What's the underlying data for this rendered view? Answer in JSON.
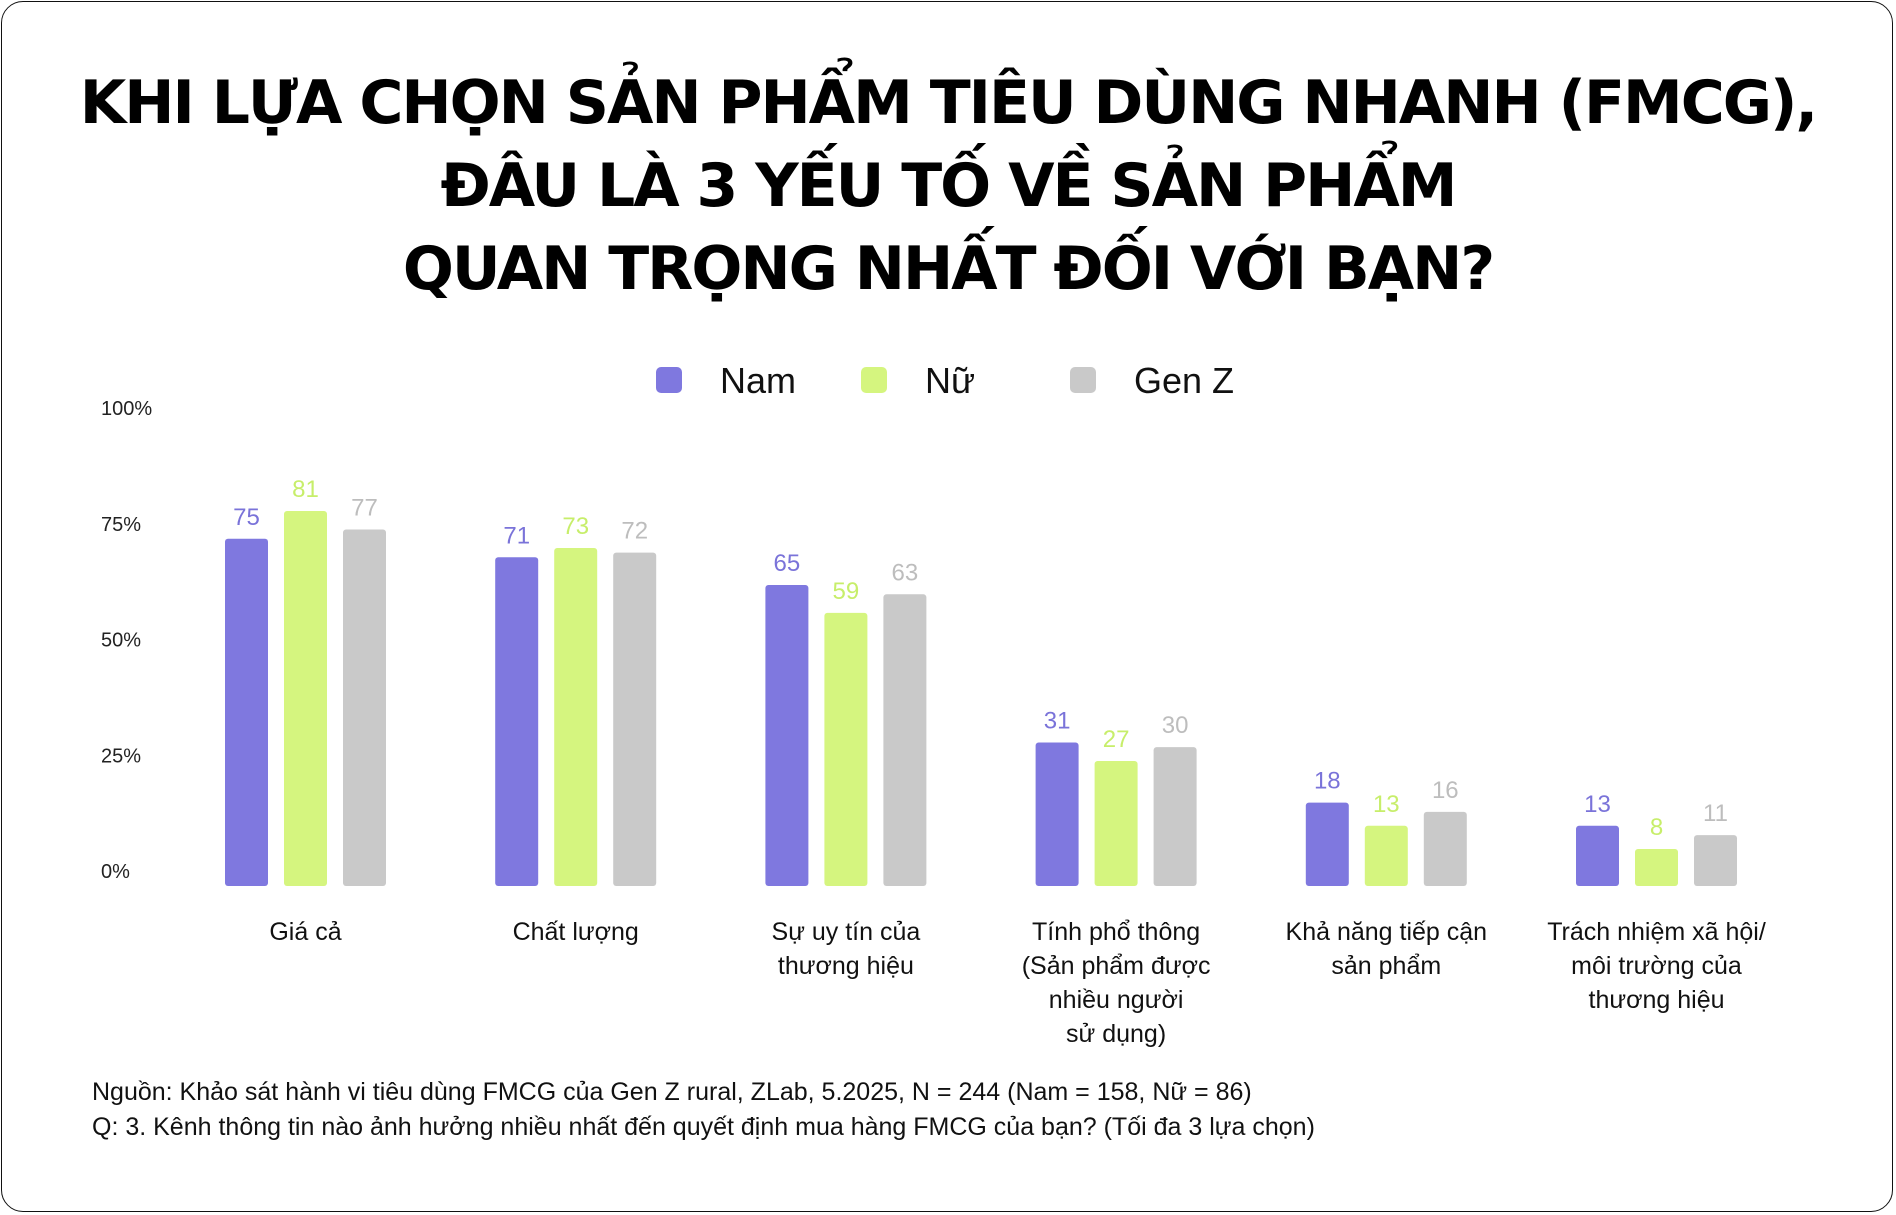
{
  "title": {
    "line1": "KHI LỰA CHỌN SẢN PHẨM TIÊU DÙNG NHANH (FMCG),",
    "line2": "ĐÂU LÀ 3 YẾU TỐ VỀ SẢN PHẨM",
    "line3": "QUAN TRỌNG NHẤT ĐỐI VỚI BẠN?"
  },
  "footer": {
    "source": "Nguồn: Khảo sát hành vi tiêu dùng FMCG của Gen Z rural, ZLab, 5.2025, N = 244 (Nam = 158, Nữ = 86)",
    "question": "Q: 3. Kênh thông tin nào ảnh hưởng nhiều nhất đến quyết định mua hàng FMCG của bạn? (Tối đa 3 lựa chọn)"
  },
  "chart_data": {
    "type": "bar",
    "categories": [
      [
        "Giá cả"
      ],
      [
        "Chất lượng"
      ],
      [
        "Sự uy tín của",
        "thương hiệu"
      ],
      [
        "Tính phổ thông",
        "(Sản phẩm được",
        "nhiều người",
        "sử dụng)"
      ],
      [
        "Khả năng tiếp cận",
        "sản phẩm"
      ],
      [
        "Trách nhiệm xã hội/",
        "môi trường của",
        "thương hiệu"
      ]
    ],
    "series": [
      {
        "name": "Nam",
        "color": "#7f78df",
        "label_color": "#7a73d9",
        "values": [
          75,
          71,
          65,
          31,
          18,
          13
        ]
      },
      {
        "name": "Nữ",
        "color": "#d5f57f",
        "label_color": "#c7ee6a",
        "values": [
          81,
          73,
          59,
          27,
          13,
          8
        ]
      },
      {
        "name": "Gen Z",
        "color": "#c9c9c9",
        "label_color": "#bdbdbd",
        "values": [
          77,
          72,
          63,
          30,
          16,
          11
        ]
      }
    ],
    "yticks": [
      "0%",
      "25%",
      "50%",
      "75%",
      "100%"
    ],
    "ylim": [
      0,
      100
    ],
    "grid": false,
    "legend": "top-center"
  }
}
